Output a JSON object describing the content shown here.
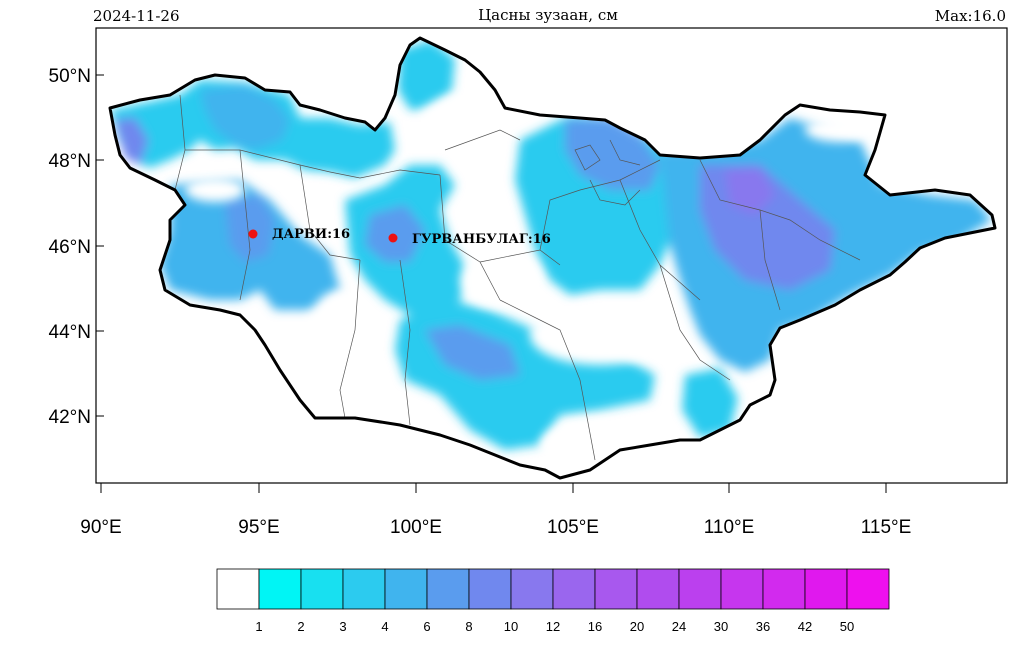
{
  "header": {
    "date": "2024-11-26",
    "title": "Цасны зузаан, см",
    "max_label": "Max:16.0"
  },
  "map": {
    "lon_ticks": [
      "90°E",
      "95°E",
      "100°E",
      "105°E",
      "110°E",
      "115°E"
    ],
    "lat_ticks": [
      "50°N",
      "48°N",
      "46°N",
      "44°N",
      "42°N"
    ],
    "stations": [
      {
        "name": "ДАРВИ:16",
        "value": 16
      },
      {
        "name": "ГУРВАНБУЛАГ:16",
        "value": 16
      }
    ]
  },
  "legend": {
    "boundaries": [
      "1",
      "2",
      "3",
      "4",
      "6",
      "8",
      "10",
      "12",
      "16",
      "20",
      "24",
      "30",
      "36",
      "42",
      "50"
    ],
    "colors": [
      "#ffffff",
      "#00f5f5",
      "#18e0f0",
      "#2ccbef",
      "#40b4ee",
      "#5a9cee",
      "#7088ee",
      "#8878ee",
      "#9a66ee",
      "#a858ee",
      "#b04cee",
      "#bb40ee",
      "#c636ee",
      "#d22aee",
      "#e018ee",
      "#ee10ee"
    ]
  },
  "colors": {
    "snow_light": "#00f5f5",
    "snow_mid": "#2ccbef",
    "snow_deep": "#5a9cee",
    "snow_deeper": "#7088ee",
    "station_marker": "#ee1111"
  }
}
